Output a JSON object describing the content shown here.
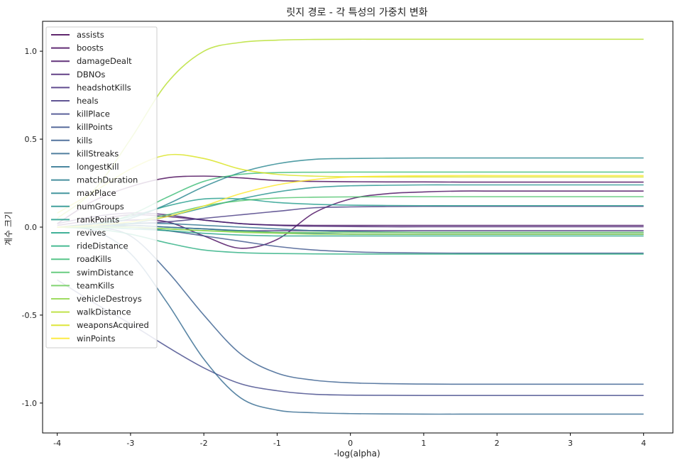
{
  "chart_data": {
    "type": "line",
    "title": "릿지 경로 - 각 특성의 가중치 변화",
    "xlabel": "-log(alpha)",
    "ylabel": "계수 크기",
    "xlim": [
      -4.2,
      4.4
    ],
    "ylim": [
      -1.17,
      1.17
    ],
    "xticks": [
      -4,
      -3,
      -2,
      -1,
      0,
      1,
      2,
      3,
      4
    ],
    "xtick_labels": [
      "-4",
      "-3",
      "-2",
      "-1",
      "0",
      "1",
      "2",
      "3",
      "4"
    ],
    "yticks": [
      -1.0,
      -0.5,
      0.0,
      0.5,
      1.0
    ],
    "ytick_labels": [
      "-1.0",
      "-0.5",
      "0.0",
      "0.5",
      "1.0"
    ],
    "grid": false,
    "legend_position": "upper-left",
    "colormap": "viridis",
    "x": [
      -4,
      -3.5,
      -3,
      -2.5,
      -2,
      -1.5,
      -1,
      -0.5,
      0,
      0.5,
      1,
      1.5,
      2,
      2.5,
      3,
      3.5,
      4
    ],
    "series": [
      {
        "name": "assists",
        "color": "#440154",
        "values": [
          0.02,
          0.15,
          0.23,
          0.28,
          0.29,
          0.28,
          0.265,
          0.26,
          0.258,
          0.257,
          0.257,
          0.256,
          0.256,
          0.256,
          0.256,
          0.256,
          0.256
        ]
      },
      {
        "name": "boosts",
        "color": "#46085c",
        "values": [
          0.0,
          0.02,
          0.04,
          0.03,
          -0.05,
          -0.12,
          -0.07,
          0.08,
          0.16,
          0.19,
          0.2,
          0.205,
          0.205,
          0.205,
          0.205,
          0.205,
          0.205
        ]
      },
      {
        "name": "damageDealt",
        "color": "#471063",
        "values": [
          0.01,
          0.04,
          0.07,
          0.06,
          0.04,
          0.02,
          0.012,
          0.01,
          0.01,
          0.01,
          0.01,
          0.01,
          0.01,
          0.01,
          0.01,
          0.01,
          0.01
        ]
      },
      {
        "name": "DBNOs",
        "color": "#482071",
        "values": [
          0.02,
          0.06,
          0.08,
          0.07,
          0.04,
          0.02,
          0.01,
          0.005,
          0.003,
          0.002,
          0.002,
          0.002,
          0.002,
          0.002,
          0.002,
          0.002,
          0.002
        ]
      },
      {
        "name": "headshotKills",
        "color": "#472e7c",
        "values": [
          0.0,
          0.0,
          0.01,
          0.0,
          -0.01,
          -0.02,
          -0.02,
          -0.02,
          -0.02,
          -0.02,
          -0.02,
          -0.02,
          -0.02,
          -0.02,
          -0.02,
          -0.02,
          -0.02
        ]
      },
      {
        "name": "heals",
        "color": "#453781",
        "values": [
          0.0,
          0.01,
          0.02,
          0.03,
          0.05,
          0.07,
          0.09,
          0.11,
          0.115,
          0.117,
          0.118,
          0.118,
          0.118,
          0.118,
          0.118,
          0.118,
          0.118
        ]
      },
      {
        "name": "killPlace",
        "color": "#404688",
        "values": [
          -0.3,
          -0.43,
          -0.55,
          -0.68,
          -0.8,
          -0.89,
          -0.93,
          -0.95,
          -0.955,
          -0.956,
          -0.957,
          -0.957,
          -0.957,
          -0.957,
          -0.957,
          -0.957,
          -0.957
        ]
      },
      {
        "name": "killPoints",
        "color": "#3b528b",
        "values": [
          0.0,
          0.01,
          0.0,
          -0.02,
          -0.05,
          -0.08,
          -0.11,
          -0.13,
          -0.14,
          -0.145,
          -0.147,
          -0.148,
          -0.148,
          -0.148,
          -0.148,
          -0.148,
          -0.148
        ]
      },
      {
        "name": "kills",
        "color": "#365c8d",
        "values": [
          0.0,
          0.0,
          -0.05,
          -0.25,
          -0.5,
          -0.72,
          -0.83,
          -0.87,
          -0.885,
          -0.89,
          -0.892,
          -0.893,
          -0.893,
          -0.893,
          -0.893,
          -0.893,
          -0.893
        ]
      },
      {
        "name": "killStreaks",
        "color": "#31688e",
        "values": [
          0.0,
          -0.02,
          -0.15,
          -0.43,
          -0.75,
          -0.97,
          -1.04,
          -1.055,
          -1.06,
          -1.062,
          -1.063,
          -1.063,
          -1.063,
          -1.063,
          -1.063,
          -1.063,
          -1.063
        ]
      },
      {
        "name": "longestKill",
        "color": "#2c728e",
        "values": [
          0.0,
          0.01,
          0.02,
          0.02,
          0.01,
          0.0,
          -0.01,
          -0.02,
          -0.025,
          -0.028,
          -0.03,
          -0.03,
          -0.03,
          -0.03,
          -0.03,
          -0.03,
          -0.03
        ]
      },
      {
        "name": "matchDuration",
        "color": "#287d8e",
        "values": [
          0.0,
          0.0,
          0.01,
          0.0,
          -0.01,
          -0.02,
          -0.03,
          -0.035,
          -0.04,
          -0.04,
          -0.04,
          -0.04,
          -0.04,
          -0.04,
          -0.04,
          -0.04,
          -0.04
        ]
      },
      {
        "name": "maxPlace",
        "color": "#25858e",
        "values": [
          0.0,
          0.01,
          0.05,
          0.13,
          0.23,
          0.31,
          0.36,
          0.385,
          0.39,
          0.392,
          0.393,
          0.393,
          0.393,
          0.393,
          0.393,
          0.393,
          0.393
        ]
      },
      {
        "name": "numGroups",
        "color": "#21918c",
        "values": [
          0.0,
          0.0,
          0.02,
          0.06,
          0.11,
          0.16,
          0.2,
          0.225,
          0.235,
          0.238,
          0.24,
          0.24,
          0.24,
          0.24,
          0.24,
          0.24,
          0.24
        ]
      },
      {
        "name": "rankPoints",
        "color": "#1e9b8a",
        "values": [
          0.0,
          0.02,
          0.06,
          0.12,
          0.16,
          0.16,
          0.14,
          0.13,
          0.125,
          0.123,
          0.122,
          0.122,
          0.122,
          0.122,
          0.122,
          0.122,
          0.122
        ]
      },
      {
        "name": "revives",
        "color": "#20a386",
        "values": [
          0.0,
          0.0,
          -0.01,
          -0.02,
          -0.035,
          -0.045,
          -0.05,
          -0.05,
          -0.05,
          -0.05,
          -0.05,
          -0.05,
          -0.05,
          -0.05,
          -0.05,
          -0.05,
          -0.05
        ]
      },
      {
        "name": "rideDistance",
        "color": "#28ae80",
        "values": [
          0.0,
          -0.01,
          -0.04,
          -0.09,
          -0.13,
          -0.145,
          -0.15,
          -0.152,
          -0.153,
          -0.153,
          -0.153,
          -0.153,
          -0.153,
          -0.153,
          -0.153,
          -0.153,
          -0.153
        ]
      },
      {
        "name": "roadKills",
        "color": "#3bbb75",
        "values": [
          0.0,
          0.01,
          0.07,
          0.17,
          0.26,
          0.3,
          0.31,
          0.312,
          0.313,
          0.313,
          0.313,
          0.313,
          0.313,
          0.313,
          0.313,
          0.313,
          0.313
        ]
      },
      {
        "name": "swimDistance",
        "color": "#4ec36b",
        "values": [
          0.0,
          0.01,
          0.03,
          0.07,
          0.12,
          0.15,
          0.165,
          0.17,
          0.172,
          0.173,
          0.173,
          0.173,
          0.173,
          0.173,
          0.173,
          0.173,
          0.173
        ]
      },
      {
        "name": "teamKills",
        "color": "#6ccd5a",
        "values": [
          0.0,
          0.0,
          0.0,
          -0.01,
          -0.02,
          -0.025,
          -0.03,
          -0.03,
          -0.03,
          -0.03,
          -0.03,
          -0.03,
          -0.03,
          -0.03,
          -0.03,
          -0.03,
          -0.03
        ]
      },
      {
        "name": "vehicleDestroys",
        "color": "#8ed645",
        "values": [
          0.0,
          0.0,
          0.0,
          -0.01,
          -0.02,
          -0.03,
          -0.035,
          -0.04,
          -0.04,
          -0.04,
          -0.04,
          -0.04,
          -0.04,
          -0.04,
          -0.04,
          -0.04,
          -0.04
        ]
      },
      {
        "name": "walkDistance",
        "color": "#b5de2b",
        "values": [
          0.05,
          0.21,
          0.5,
          0.82,
          1.0,
          1.05,
          1.063,
          1.067,
          1.068,
          1.068,
          1.068,
          1.068,
          1.068,
          1.068,
          1.068,
          1.068,
          1.068
        ]
      },
      {
        "name": "weaponsAcquired",
        "color": "#d8e219",
        "values": [
          0.08,
          0.2,
          0.33,
          0.41,
          0.39,
          0.33,
          0.3,
          0.29,
          0.286,
          0.285,
          0.285,
          0.285,
          0.285,
          0.285,
          0.285,
          0.285,
          0.285
        ]
      },
      {
        "name": "winPoints",
        "color": "#fde725",
        "values": [
          0.0,
          0.01,
          0.03,
          0.06,
          0.12,
          0.19,
          0.24,
          0.27,
          0.285,
          0.29,
          0.292,
          0.293,
          0.293,
          0.293,
          0.293,
          0.293,
          0.293
        ]
      }
    ]
  }
}
